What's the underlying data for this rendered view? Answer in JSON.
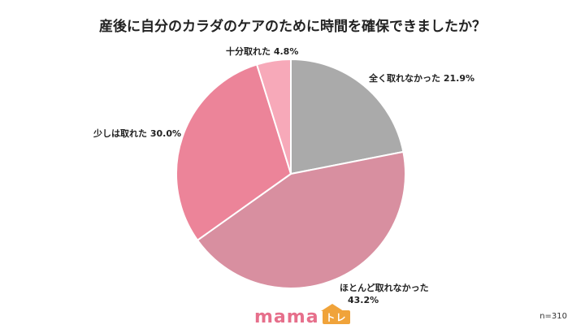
{
  "chart_data": {
    "type": "pie",
    "title": "産後に自分のカラダのケアのために時間を確保できましたか？",
    "slices": [
      {
        "label": "全く取れなかった",
        "value": 21.9,
        "display": "21.9%",
        "color": "#aaaaaa"
      },
      {
        "label": "ほとんど取れなかった",
        "value": 43.2,
        "display": "43.2%",
        "color": "#d88fa0"
      },
      {
        "label": "少しは取れた",
        "value": 30.0,
        "display": "30.0%",
        "color": "#ec8499"
      },
      {
        "label": "十分取れた",
        "value": 4.8,
        "display": "4.8%",
        "color": "#f7a9b9"
      }
    ],
    "sample_size": "n=310"
  },
  "branding": {
    "logo_main": "mama",
    "logo_sub": "トレ"
  }
}
